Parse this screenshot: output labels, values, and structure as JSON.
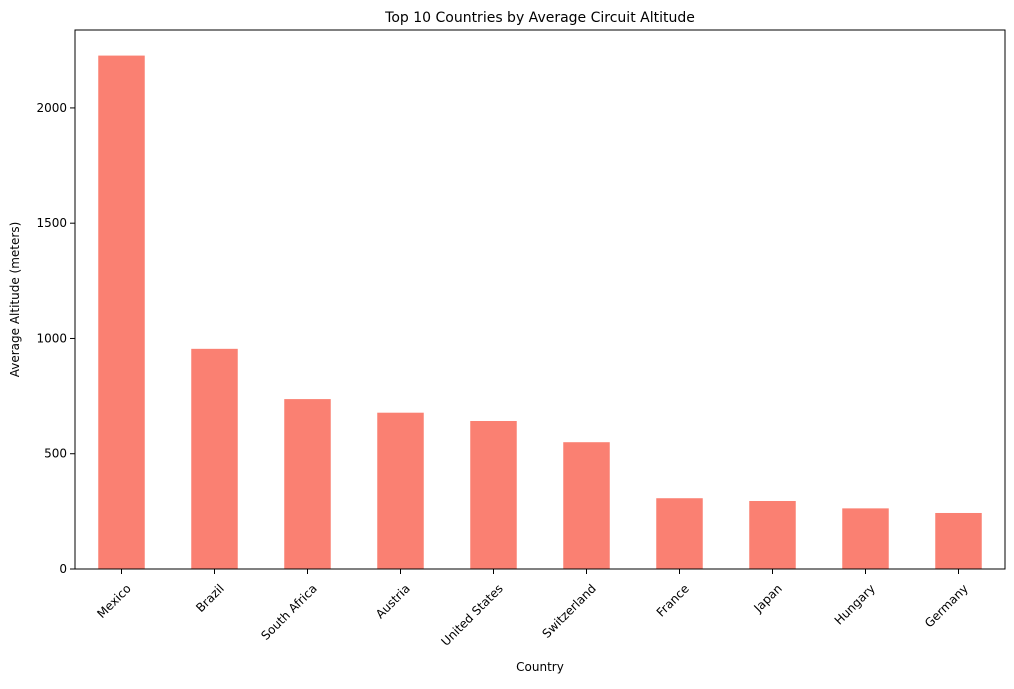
{
  "chart_data": {
    "type": "bar",
    "title": "Top 10 Countries by Average Circuit Altitude",
    "xlabel": "Country",
    "ylabel": "Average Altitude (meters)",
    "categories": [
      "Mexico",
      "Brazil",
      "South Africa",
      "Austria",
      "United States",
      "Switzerland",
      "France",
      "Japan",
      "Hungary",
      "Germany"
    ],
    "values": [
      2227,
      955,
      737,
      678,
      642,
      550,
      307,
      295,
      263,
      243
    ],
    "ylim": [
      0,
      2338
    ],
    "yticks": [
      0,
      500,
      1000,
      1500,
      2000
    ],
    "bar_color": "#fa8072",
    "grid": false,
    "legend": "none"
  }
}
